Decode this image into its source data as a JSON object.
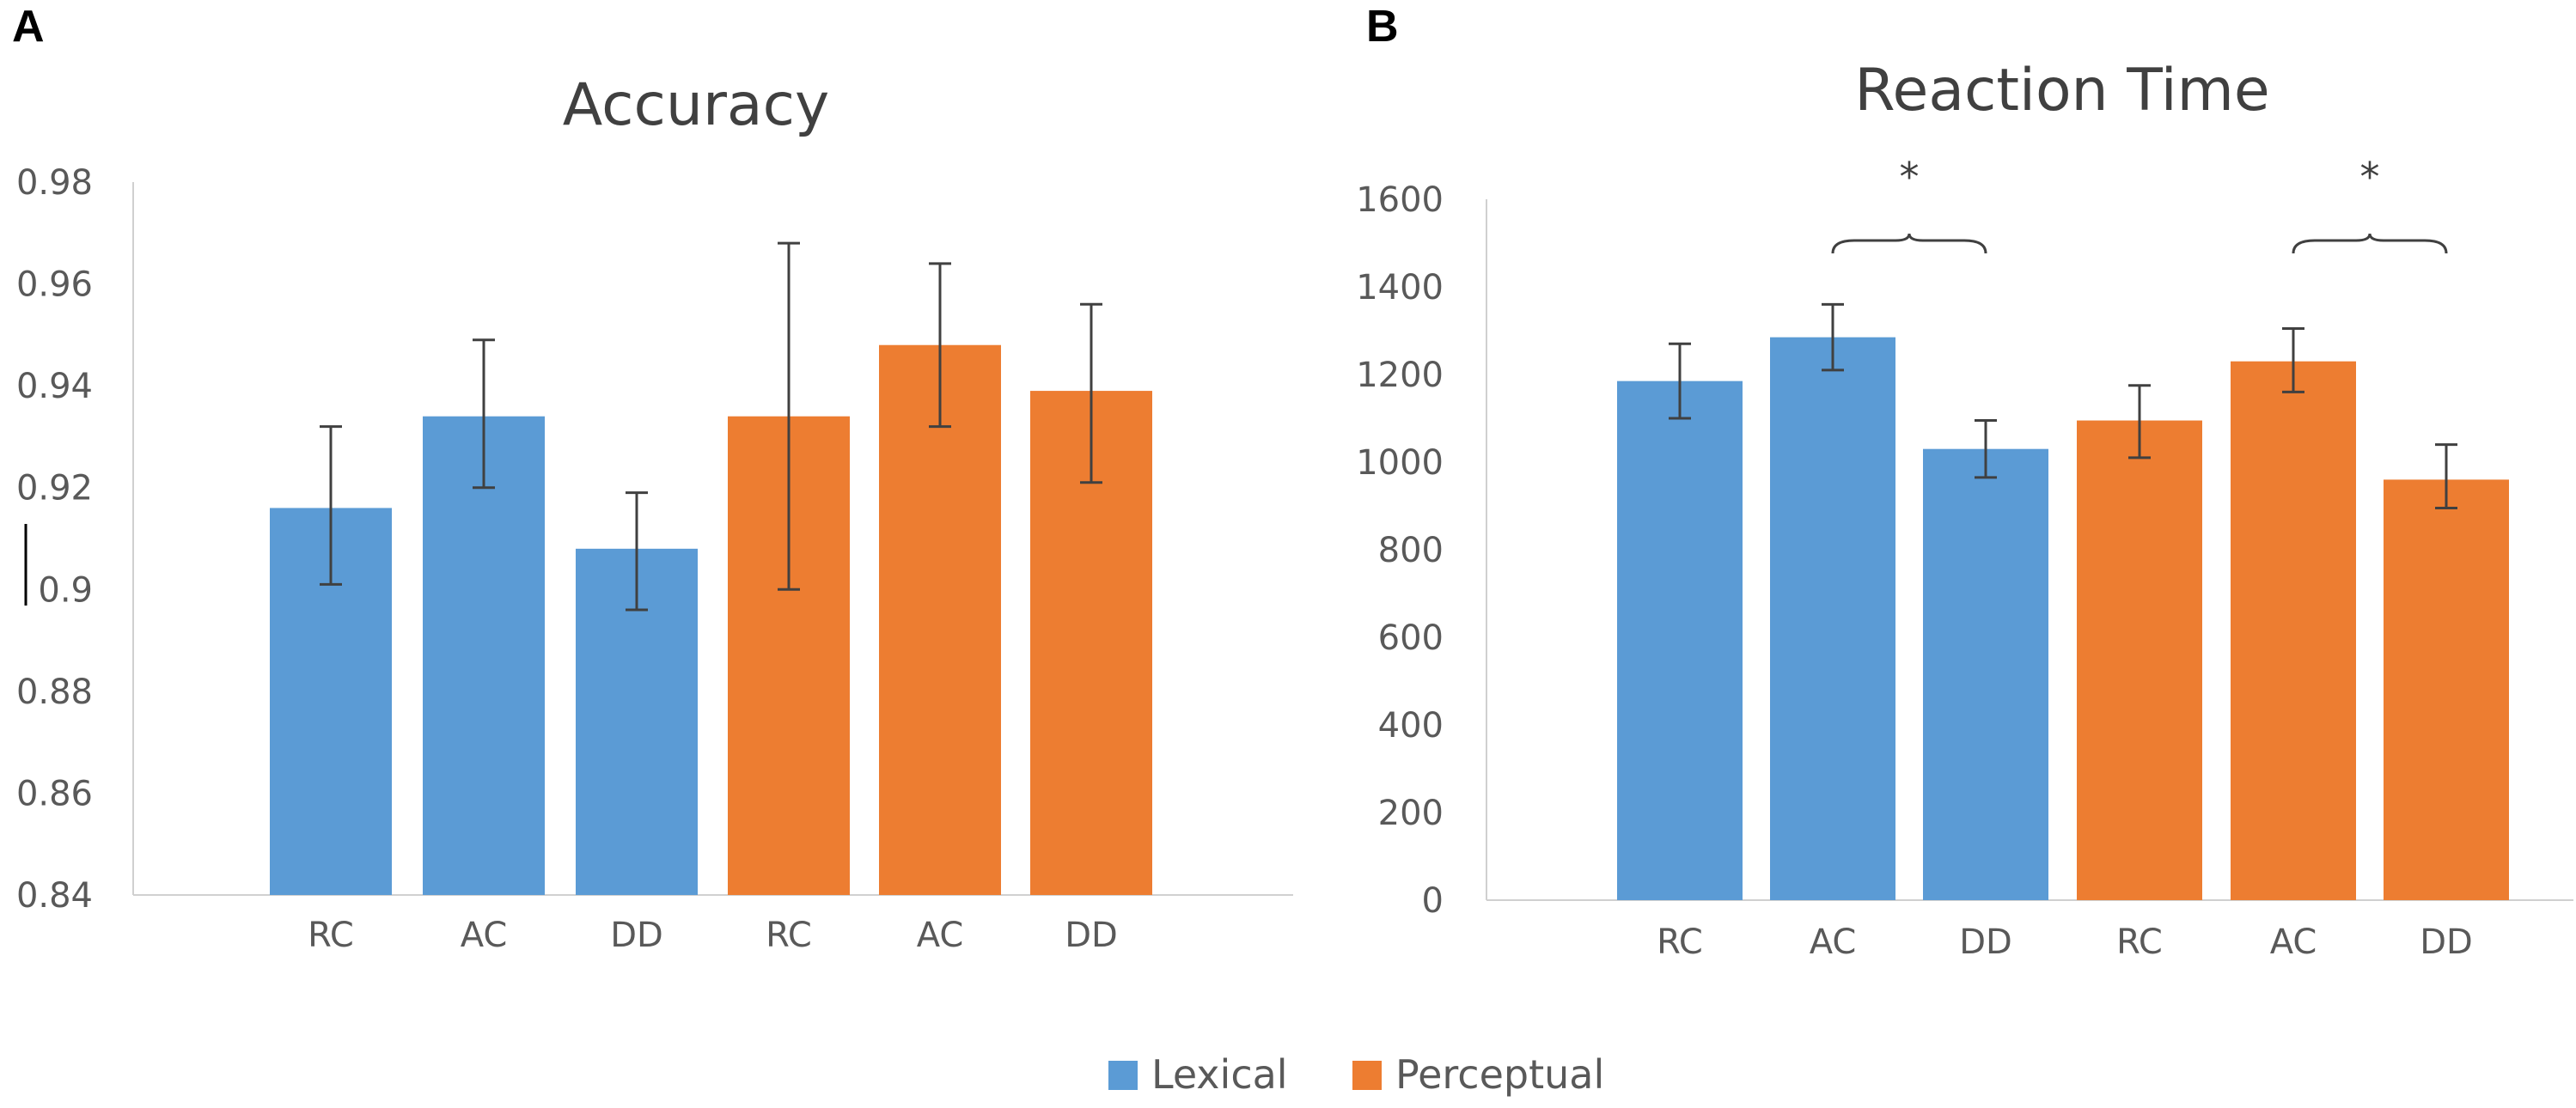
{
  "panels": {
    "a": {
      "letter": "A"
    },
    "b": {
      "letter": "B"
    }
  },
  "colors": {
    "lexical": "#5b9bd5",
    "perceptual": "#ed7d31"
  },
  "legend": {
    "items": [
      {
        "label": "Lexical",
        "color": "#5b9bd5"
      },
      {
        "label": "Perceptual",
        "color": "#ed7d31"
      }
    ]
  },
  "chart_data": [
    {
      "type": "bar",
      "title": "Accuracy",
      "xlabel": "",
      "ylabel": "",
      "ylim": [
        0.84,
        0.98
      ],
      "yticks": [
        0.84,
        0.86,
        0.88,
        0.9,
        0.92,
        0.94,
        0.96,
        0.98
      ],
      "ytick_labels": [
        "0.84",
        "0.86",
        "0.88",
        "0.9",
        "0.92",
        "0.94",
        "0.96",
        "0.98"
      ],
      "categories": [
        "RC",
        "AC",
        "DD",
        "RC",
        "AC",
        "DD"
      ],
      "bar_groups": [
        "Lexical",
        "Lexical",
        "Lexical",
        "Perceptual",
        "Perceptual",
        "Perceptual"
      ],
      "values": [
        0.916,
        0.934,
        0.908,
        0.934,
        0.948,
        0.939
      ],
      "error_low": [
        0.901,
        0.92,
        0.896,
        0.9,
        0.932,
        0.921
      ],
      "error_high": [
        0.932,
        0.949,
        0.919,
        0.968,
        0.964,
        0.956
      ],
      "significance": []
    },
    {
      "type": "bar",
      "title": "Reaction Time",
      "xlabel": "",
      "ylabel": "",
      "ylim": [
        0,
        1600
      ],
      "yticks": [
        0,
        200,
        400,
        600,
        800,
        1000,
        1200,
        1400,
        1600
      ],
      "ytick_labels": [
        "0",
        "200",
        "400",
        "600",
        "800",
        "1000",
        "1200",
        "1400",
        "1600"
      ],
      "categories": [
        "RC",
        "AC",
        "DD",
        "RC",
        "AC",
        "DD"
      ],
      "bar_groups": [
        "Lexical",
        "Lexical",
        "Lexical",
        "Perceptual",
        "Perceptual",
        "Perceptual"
      ],
      "values": [
        1185,
        1285,
        1030,
        1095,
        1230,
        960
      ],
      "error_low": [
        1100,
        1210,
        965,
        1010,
        1160,
        895
      ],
      "error_high": [
        1270,
        1360,
        1095,
        1175,
        1305,
        1040
      ],
      "significance": [
        {
          "from": 1,
          "to": 2,
          "label": "*"
        },
        {
          "from": 4,
          "to": 5,
          "label": "*"
        }
      ]
    }
  ]
}
